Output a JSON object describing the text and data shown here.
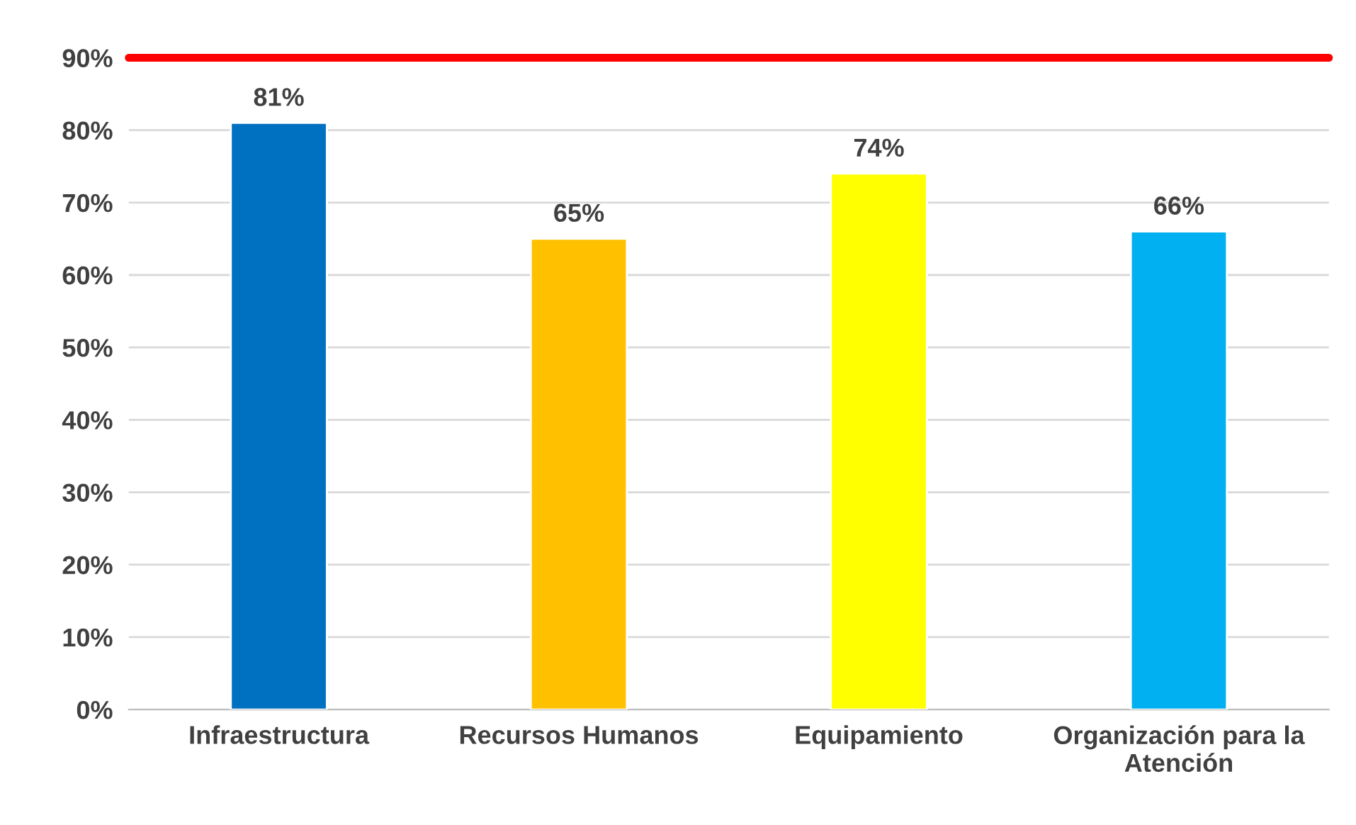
{
  "chart_data": {
    "type": "bar",
    "categories": [
      "Infraestructura",
      "Recursos Humanos",
      "Equipamiento",
      "Organización para la\nAtención"
    ],
    "values": [
      81,
      65,
      74,
      66
    ],
    "colors": [
      "#0070c0",
      "#ffc000",
      "#ffff00",
      "#00b0f0"
    ],
    "value_labels": [
      "81%",
      "65%",
      "74%",
      "66%"
    ],
    "ylim": [
      0,
      90
    ],
    "yticks": [
      {
        "value": 0,
        "label": "0%"
      },
      {
        "value": 10,
        "label": "10%"
      },
      {
        "value": 20,
        "label": "20%"
      },
      {
        "value": 30,
        "label": "30%"
      },
      {
        "value": 40,
        "label": "40%"
      },
      {
        "value": 50,
        "label": "50%"
      },
      {
        "value": 60,
        "label": "60%"
      },
      {
        "value": 70,
        "label": "70%"
      },
      {
        "value": 80,
        "label": "80%"
      },
      {
        "value": 90,
        "label": "90%"
      }
    ],
    "ref_lines": [
      {
        "axis": "y",
        "value": 90,
        "color": "#ff0000",
        "line_style": "solid"
      }
    ],
    "grid": "y",
    "legend": false
  }
}
